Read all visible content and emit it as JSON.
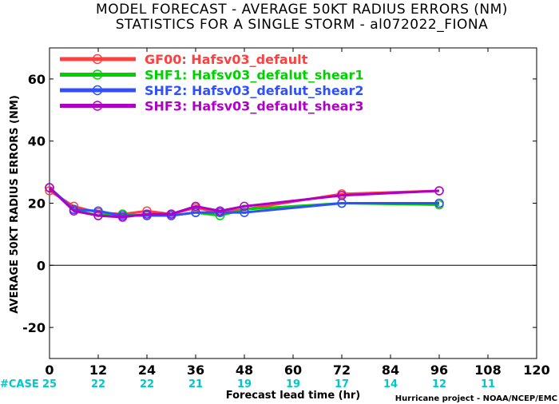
{
  "title_line1": "MODEL FORECAST - AVERAGE 50KT RADIUS ERRORS (NM)",
  "title_line2": "STATISTICS FOR A SINGLE STORM - al072022_FIONA",
  "credit": "Hurricane project - NOAA/NCEP/EMC",
  "case_label": "#CASE",
  "colors": {
    "case_text": "#00c8c8",
    "zero_line": "#000000"
  },
  "chart_data": {
    "type": "line",
    "xlabel": "Forecast lead time (hr)",
    "ylabel": "AVERAGE 50KT RADIUS ERRORS (NM)",
    "xlim": [
      0,
      120
    ],
    "ylim": [
      -30,
      70
    ],
    "xticks": [
      0,
      12,
      24,
      36,
      48,
      60,
      72,
      84,
      96,
      108,
      120
    ],
    "yticks": [
      -20,
      0,
      20,
      40,
      60
    ],
    "case_counts": [
      25,
      22,
      22,
      21,
      19,
      19,
      17,
      14,
      12,
      11
    ],
    "legend_position": "top-left",
    "series": [
      {
        "name": "GF00: Hafsv03_default",
        "color": "#ff4040",
        "x": [
          0,
          6,
          12,
          18,
          24,
          30,
          36,
          42,
          48,
          72,
          96
        ],
        "y": [
          24,
          19,
          17,
          16.5,
          17.5,
          16.5,
          18.5,
          17,
          18,
          23,
          24
        ]
      },
      {
        "name": "SHF1: Hafsv03_defalut_shear1",
        "color": "#00d000",
        "x": [
          0,
          6,
          12,
          18,
          24,
          30,
          36,
          42,
          48,
          72,
          96
        ],
        "y": [
          25,
          18,
          16,
          16.5,
          16,
          16,
          17,
          16,
          18,
          20,
          19.5
        ]
      },
      {
        "name": "SHF2: Hafsv03_defalut_shear2",
        "color": "#3050ff",
        "x": [
          0,
          6,
          12,
          18,
          24,
          30,
          36,
          42,
          48,
          72,
          96
        ],
        "y": [
          25,
          18,
          17.5,
          16,
          16,
          16,
          17,
          17,
          17,
          20,
          20
        ]
      },
      {
        "name": "SHF3: Hafsv03_default_shear3",
        "color": "#b000c8",
        "x": [
          0,
          6,
          12,
          18,
          24,
          30,
          36,
          42,
          48,
          72,
          96
        ],
        "y": [
          25,
          17.5,
          16,
          15.5,
          16.5,
          16.5,
          19,
          17.5,
          19,
          22.5,
          24
        ]
      }
    ]
  }
}
